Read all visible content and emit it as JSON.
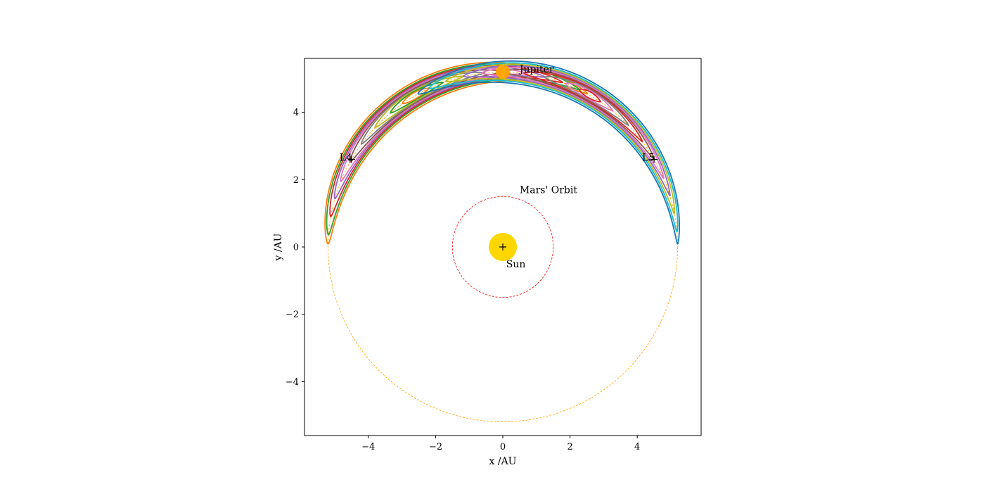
{
  "chart_data": {
    "type": "scatter",
    "title": "",
    "xlabel": "x /AU",
    "ylabel": "y /AU",
    "xlim": [
      -5.9,
      5.9
    ],
    "ylim": [
      -5.6,
      5.6
    ],
    "aspect": "equal",
    "grid": false,
    "legend": "none",
    "xticks": [
      -4,
      -2,
      0,
      2,
      4
    ],
    "yticks": [
      -4,
      -2,
      0,
      2,
      4
    ],
    "tick_labels": [
      "−4",
      "−2",
      "0",
      "2",
      "4"
    ],
    "bodies": [
      {
        "name": "Sun",
        "x": 0,
        "y": 0,
        "radius": 0.42,
        "color": "#ffd700"
      },
      {
        "name": "Jupiter",
        "x": 0,
        "y": 5.2,
        "radius": 0.21,
        "color": "#ffa500"
      }
    ],
    "orbits": [
      {
        "name": "Mars' Orbit",
        "radius": 1.5,
        "color": "#ff0000",
        "style": "dashed"
      },
      {
        "name": "Jupiter orbit",
        "radius": 5.2,
        "color": "#ffa500",
        "style": "dashed"
      }
    ],
    "lagrange_points": [
      {
        "label": "L4",
        "x": -4.5,
        "y": 2.6
      },
      {
        "label": "L5",
        "x": 4.5,
        "y": 2.6
      }
    ],
    "sun_marker": {
      "x": 0,
      "y": 0
    },
    "trojan_orbits": {
      "L4": {
        "center_angle_deg": 120,
        "colors": [
          "#d62728",
          "#ff7f0e",
          "#2ca02c",
          "#9467bd",
          "#8c564b",
          "#e377c2",
          "#7f7f7f",
          "#bcbd22",
          "#17becf",
          "#1f77b4"
        ],
        "loops": [
          {
            "amp_deg": 59,
            "width": 0.42,
            "color": "#ff7f0e"
          },
          {
            "amp_deg": 56,
            "width": 0.36,
            "color": "#2ca02c"
          },
          {
            "amp_deg": 50,
            "width": 0.32,
            "color": "#d62728"
          },
          {
            "amp_deg": 44,
            "width": 0.28,
            "color": "#9467bd"
          },
          {
            "amp_deg": 38,
            "width": 0.25,
            "color": "#e377c2"
          },
          {
            "amp_deg": 31,
            "width": 0.22,
            "color": "#8c564b"
          },
          {
            "amp_deg": 24,
            "width": 0.19,
            "color": "#7f7f7f"
          },
          {
            "amp_deg": 17,
            "width": 0.16,
            "color": "#bcbd22"
          },
          {
            "amp_deg": 10,
            "width": 0.13,
            "color": "#2ca02c"
          },
          {
            "amp_deg": 5,
            "width": 0.1,
            "color": "#ff7f0e"
          }
        ]
      },
      "L5": {
        "center_angle_deg": 60,
        "loops": [
          {
            "amp_deg": 59,
            "width": 0.42,
            "color": "#1f77b4"
          },
          {
            "amp_deg": 55,
            "width": 0.36,
            "color": "#17becf"
          },
          {
            "amp_deg": 49,
            "width": 0.32,
            "color": "#bcbd22"
          },
          {
            "amp_deg": 43,
            "width": 0.28,
            "color": "#9467bd"
          },
          {
            "amp_deg": 37,
            "width": 0.25,
            "color": "#e377c2"
          },
          {
            "amp_deg": 30,
            "width": 0.22,
            "color": "#8c564b"
          },
          {
            "amp_deg": 23,
            "width": 0.19,
            "color": "#d62728"
          },
          {
            "amp_deg": 16,
            "width": 0.16,
            "color": "#7f7f7f"
          },
          {
            "amp_deg": 9,
            "width": 0.13,
            "color": "#e377c2"
          },
          {
            "amp_deg": 4,
            "width": 0.1,
            "color": "#d62728"
          }
        ]
      }
    }
  }
}
